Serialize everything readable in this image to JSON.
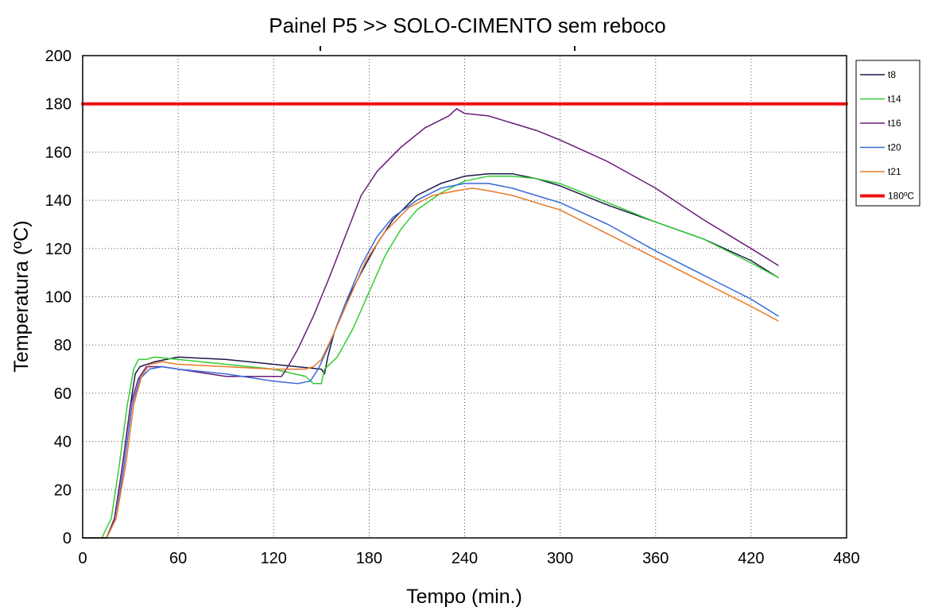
{
  "chart_data": {
    "type": "line",
    "title": "Painel P5 >> SOLO-CIMENTO sem reboco",
    "xlabel": "Tempo (min.)",
    "ylabel": "Temperatura (ºC)",
    "xlim": [
      0,
      480
    ],
    "ylim": [
      0,
      200
    ],
    "xticks": [
      0,
      60,
      120,
      180,
      240,
      300,
      360,
      420,
      480
    ],
    "yticks": [
      0,
      20,
      40,
      60,
      80,
      100,
      120,
      140,
      160,
      180,
      200
    ],
    "grid": true,
    "legend_position": "right",
    "series": [
      {
        "name": "t8",
        "color": "#1a1a4a",
        "width": 1.5,
        "points": [
          [
            0,
            0
          ],
          [
            15,
            0
          ],
          [
            20,
            8
          ],
          [
            25,
            30
          ],
          [
            30,
            55
          ],
          [
            33,
            68
          ],
          [
            36,
            71
          ],
          [
            45,
            73
          ],
          [
            60,
            75
          ],
          [
            90,
            74
          ],
          [
            120,
            72
          ],
          [
            150,
            70
          ],
          [
            152,
            68
          ],
          [
            154,
            75
          ],
          [
            158,
            85
          ],
          [
            165,
            97
          ],
          [
            175,
            110
          ],
          [
            185,
            122
          ],
          [
            195,
            132
          ],
          [
            210,
            142
          ],
          [
            225,
            147
          ],
          [
            240,
            150
          ],
          [
            255,
            151
          ],
          [
            270,
            151
          ],
          [
            285,
            149
          ],
          [
            300,
            146
          ],
          [
            330,
            138
          ],
          [
            360,
            131
          ],
          [
            390,
            124
          ],
          [
            420,
            115
          ],
          [
            437,
            108
          ]
        ]
      },
      {
        "name": "t14",
        "color": "#33cc33",
        "width": 1.5,
        "points": [
          [
            0,
            0
          ],
          [
            12,
            0
          ],
          [
            18,
            8
          ],
          [
            23,
            30
          ],
          [
            28,
            55
          ],
          [
            32,
            70
          ],
          [
            35,
            74
          ],
          [
            40,
            74
          ],
          [
            45,
            75
          ],
          [
            60,
            74
          ],
          [
            90,
            72
          ],
          [
            120,
            70
          ],
          [
            140,
            67
          ],
          [
            145,
            64
          ],
          [
            150,
            64
          ],
          [
            152,
            70
          ],
          [
            160,
            75
          ],
          [
            170,
            87
          ],
          [
            180,
            102
          ],
          [
            190,
            117
          ],
          [
            200,
            128
          ],
          [
            210,
            136
          ],
          [
            225,
            143
          ],
          [
            240,
            148
          ],
          [
            255,
            150
          ],
          [
            270,
            150
          ],
          [
            285,
            149
          ],
          [
            300,
            147
          ],
          [
            330,
            139
          ],
          [
            360,
            131
          ],
          [
            390,
            124
          ],
          [
            420,
            114
          ],
          [
            437,
            108
          ]
        ]
      },
      {
        "name": "t16",
        "color": "#6a1a7a",
        "width": 1.5,
        "points": [
          [
            0,
            0
          ],
          [
            15,
            0
          ],
          [
            20,
            8
          ],
          [
            25,
            30
          ],
          [
            30,
            55
          ],
          [
            35,
            66
          ],
          [
            40,
            71
          ],
          [
            50,
            71
          ],
          [
            60,
            70
          ],
          [
            90,
            67
          ],
          [
            110,
            67
          ],
          [
            125,
            67
          ],
          [
            128,
            70
          ],
          [
            135,
            78
          ],
          [
            145,
            92
          ],
          [
            155,
            108
          ],
          [
            165,
            125
          ],
          [
            175,
            142
          ],
          [
            185,
            152
          ],
          [
            200,
            162
          ],
          [
            215,
            170
          ],
          [
            230,
            175
          ],
          [
            235,
            178
          ],
          [
            240,
            176
          ],
          [
            255,
            175
          ],
          [
            270,
            172
          ],
          [
            285,
            169
          ],
          [
            300,
            165
          ],
          [
            330,
            156
          ],
          [
            360,
            145
          ],
          [
            390,
            132
          ],
          [
            420,
            120
          ],
          [
            437,
            113
          ]
        ]
      },
      {
        "name": "t20",
        "color": "#3a6ad8",
        "width": 1.5,
        "points": [
          [
            0,
            0
          ],
          [
            15,
            0
          ],
          [
            21,
            8
          ],
          [
            26,
            30
          ],
          [
            31,
            55
          ],
          [
            36,
            66
          ],
          [
            42,
            70
          ],
          [
            50,
            71
          ],
          [
            60,
            70
          ],
          [
            90,
            68
          ],
          [
            120,
            65
          ],
          [
            135,
            64
          ],
          [
            143,
            65
          ],
          [
            148,
            70
          ],
          [
            155,
            80
          ],
          [
            165,
            97
          ],
          [
            175,
            113
          ],
          [
            185,
            125
          ],
          [
            195,
            133
          ],
          [
            210,
            140
          ],
          [
            225,
            145
          ],
          [
            240,
            147
          ],
          [
            255,
            147
          ],
          [
            270,
            145
          ],
          [
            285,
            142
          ],
          [
            300,
            139
          ],
          [
            330,
            130
          ],
          [
            360,
            119
          ],
          [
            390,
            109
          ],
          [
            420,
            99
          ],
          [
            437,
            92
          ]
        ]
      },
      {
        "name": "t21",
        "color": "#e87a2a",
        "width": 1.5,
        "points": [
          [
            0,
            0
          ],
          [
            15,
            0
          ],
          [
            21,
            8
          ],
          [
            27,
            30
          ],
          [
            32,
            55
          ],
          [
            37,
            67
          ],
          [
            42,
            72
          ],
          [
            50,
            73
          ],
          [
            60,
            72
          ],
          [
            90,
            71
          ],
          [
            120,
            70
          ],
          [
            130,
            70
          ],
          [
            140,
            70
          ],
          [
            145,
            71
          ],
          [
            150,
            74
          ],
          [
            158,
            85
          ],
          [
            168,
            100
          ],
          [
            178,
            115
          ],
          [
            190,
            127
          ],
          [
            205,
            137
          ],
          [
            220,
            142
          ],
          [
            235,
            144
          ],
          [
            245,
            145
          ],
          [
            255,
            144
          ],
          [
            270,
            142
          ],
          [
            285,
            139
          ],
          [
            300,
            136
          ],
          [
            330,
            126
          ],
          [
            360,
            116
          ],
          [
            390,
            106
          ],
          [
            420,
            96
          ],
          [
            437,
            90
          ]
        ]
      },
      {
        "name": "180ºC",
        "color": "#ee1111",
        "width": 4,
        "points": [
          [
            0,
            180
          ],
          [
            480,
            180
          ]
        ]
      }
    ]
  }
}
